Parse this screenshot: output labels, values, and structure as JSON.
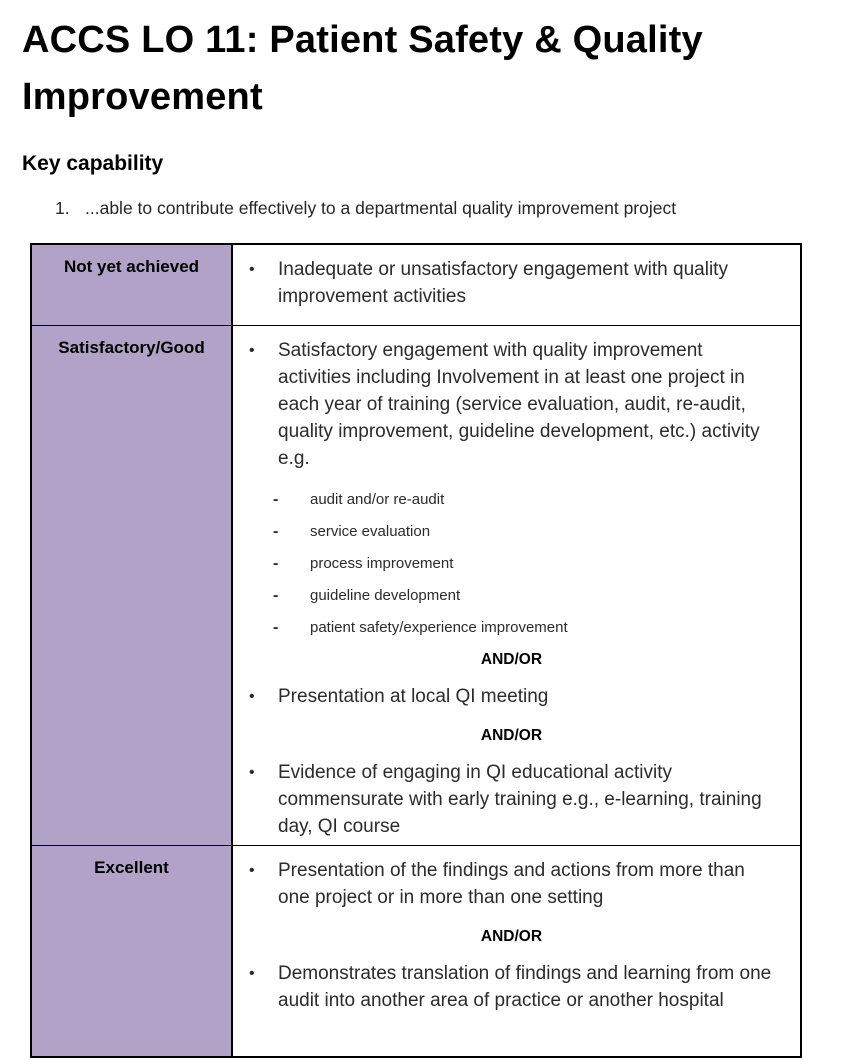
{
  "page": {
    "title": "ACCS LO 11: Patient Safety & Quality Improvement",
    "section_heading": "Key capability",
    "key_capabilities": [
      {
        "number": "1.",
        "text": "...able to contribute effectively to a departmental quality improvement project"
      }
    ]
  },
  "table": {
    "markers": {
      "bullet_char": "•",
      "dash_char": "-"
    },
    "colors": {
      "label_bg": "#b2a2c7",
      "border": "#000000"
    },
    "rows": [
      {
        "label": "Not yet achieved",
        "content": [
          {
            "type": "bullet",
            "text": "Inadequate or unsatisfactory engagement with quality improvement activities"
          }
        ]
      },
      {
        "label": "Satisfactory/Good",
        "content": [
          {
            "type": "bullet",
            "text": "Satisfactory engagement with quality improvement activities including Involvement in at least one project in each year of training (service evaluation, audit, re-audit, quality improvement, guideline development, etc.) activity e.g."
          },
          {
            "type": "dash",
            "text": "audit and/or re-audit"
          },
          {
            "type": "dash",
            "text": "service evaluation"
          },
          {
            "type": "dash",
            "text": "process improvement"
          },
          {
            "type": "dash",
            "text": "guideline development"
          },
          {
            "type": "dash",
            "text": "patient safety/experience improvement"
          },
          {
            "type": "andor",
            "text": "AND/OR"
          },
          {
            "type": "bullet",
            "text": "Presentation at local QI meeting"
          },
          {
            "type": "andor",
            "text": "AND/OR"
          },
          {
            "type": "bullet",
            "text": "Evidence of engaging in QI educational activity commensurate with early training e.g., e-learning, training day, QI course"
          }
        ]
      },
      {
        "label": "Excellent",
        "content": [
          {
            "type": "bullet",
            "text": "Presentation of the findings and actions from more than one project or in more than one setting"
          },
          {
            "type": "andor",
            "text": "AND/OR"
          },
          {
            "type": "bullet",
            "text": "Demonstrates translation of findings and learning from one audit into another area of practice or another hospital"
          }
        ]
      }
    ]
  }
}
